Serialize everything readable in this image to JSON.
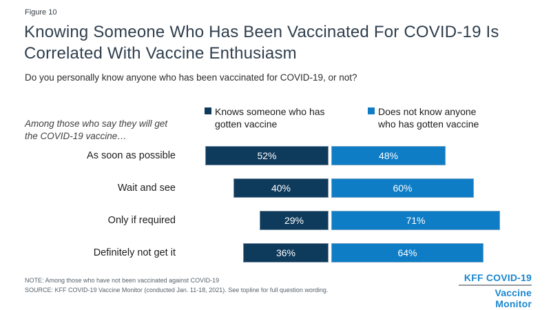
{
  "figure_label": "Figure 10",
  "title": "Knowing Someone Who Has Been Vaccinated For COVID-19 Is Correlated With Vaccine Enthusiasm",
  "subtitle": "Do you personally know anyone who has been vaccinated for COVID-19, or not?",
  "annotation": "Among those who say they will get the COVID-19 vaccine…",
  "legend": [
    {
      "label": "Knows someone who has gotten vaccine",
      "color": "#0E3A5C"
    },
    {
      "label": "Does not know anyone who has gotten vaccine",
      "color": "#0E7DC6"
    }
  ],
  "chart_data": {
    "type": "bar",
    "orientation": "horizontal",
    "layout": "stacked pairs aligned at the junction between the two segments",
    "categories": [
      "As soon as possible",
      "Wait and see",
      "Only if required",
      "Definitely not get it"
    ],
    "series": [
      {
        "name": "Knows someone who has gotten vaccine",
        "color": "#0E3A5C",
        "values": [
          52,
          40,
          29,
          36
        ]
      },
      {
        "name": "Does not know anyone who has gotten vaccine",
        "color": "#0E7DC6",
        "values": [
          48,
          60,
          71,
          64
        ]
      }
    ],
    "value_format": "percent",
    "data_labels": "inside, white",
    "legend_position": "top",
    "xlim": [
      0,
      100
    ],
    "grid": false
  },
  "footer": {
    "note": "NOTE: Among those who have not been vaccinated against COVID-19",
    "source": "SOURCE: KFF COVID-19 Vaccine Monitor (conducted Jan. 11-18, 2021). See topline for full question wording."
  },
  "logo": {
    "line1": "KFF COVID-19",
    "line2": "Vaccine Monitor",
    "color": "#1A86CF"
  },
  "colors": {
    "title": "#2F3E4D",
    "dark_series": "#0E3A5C",
    "light_series": "#0E7DC6",
    "footnote": "#55606A"
  }
}
